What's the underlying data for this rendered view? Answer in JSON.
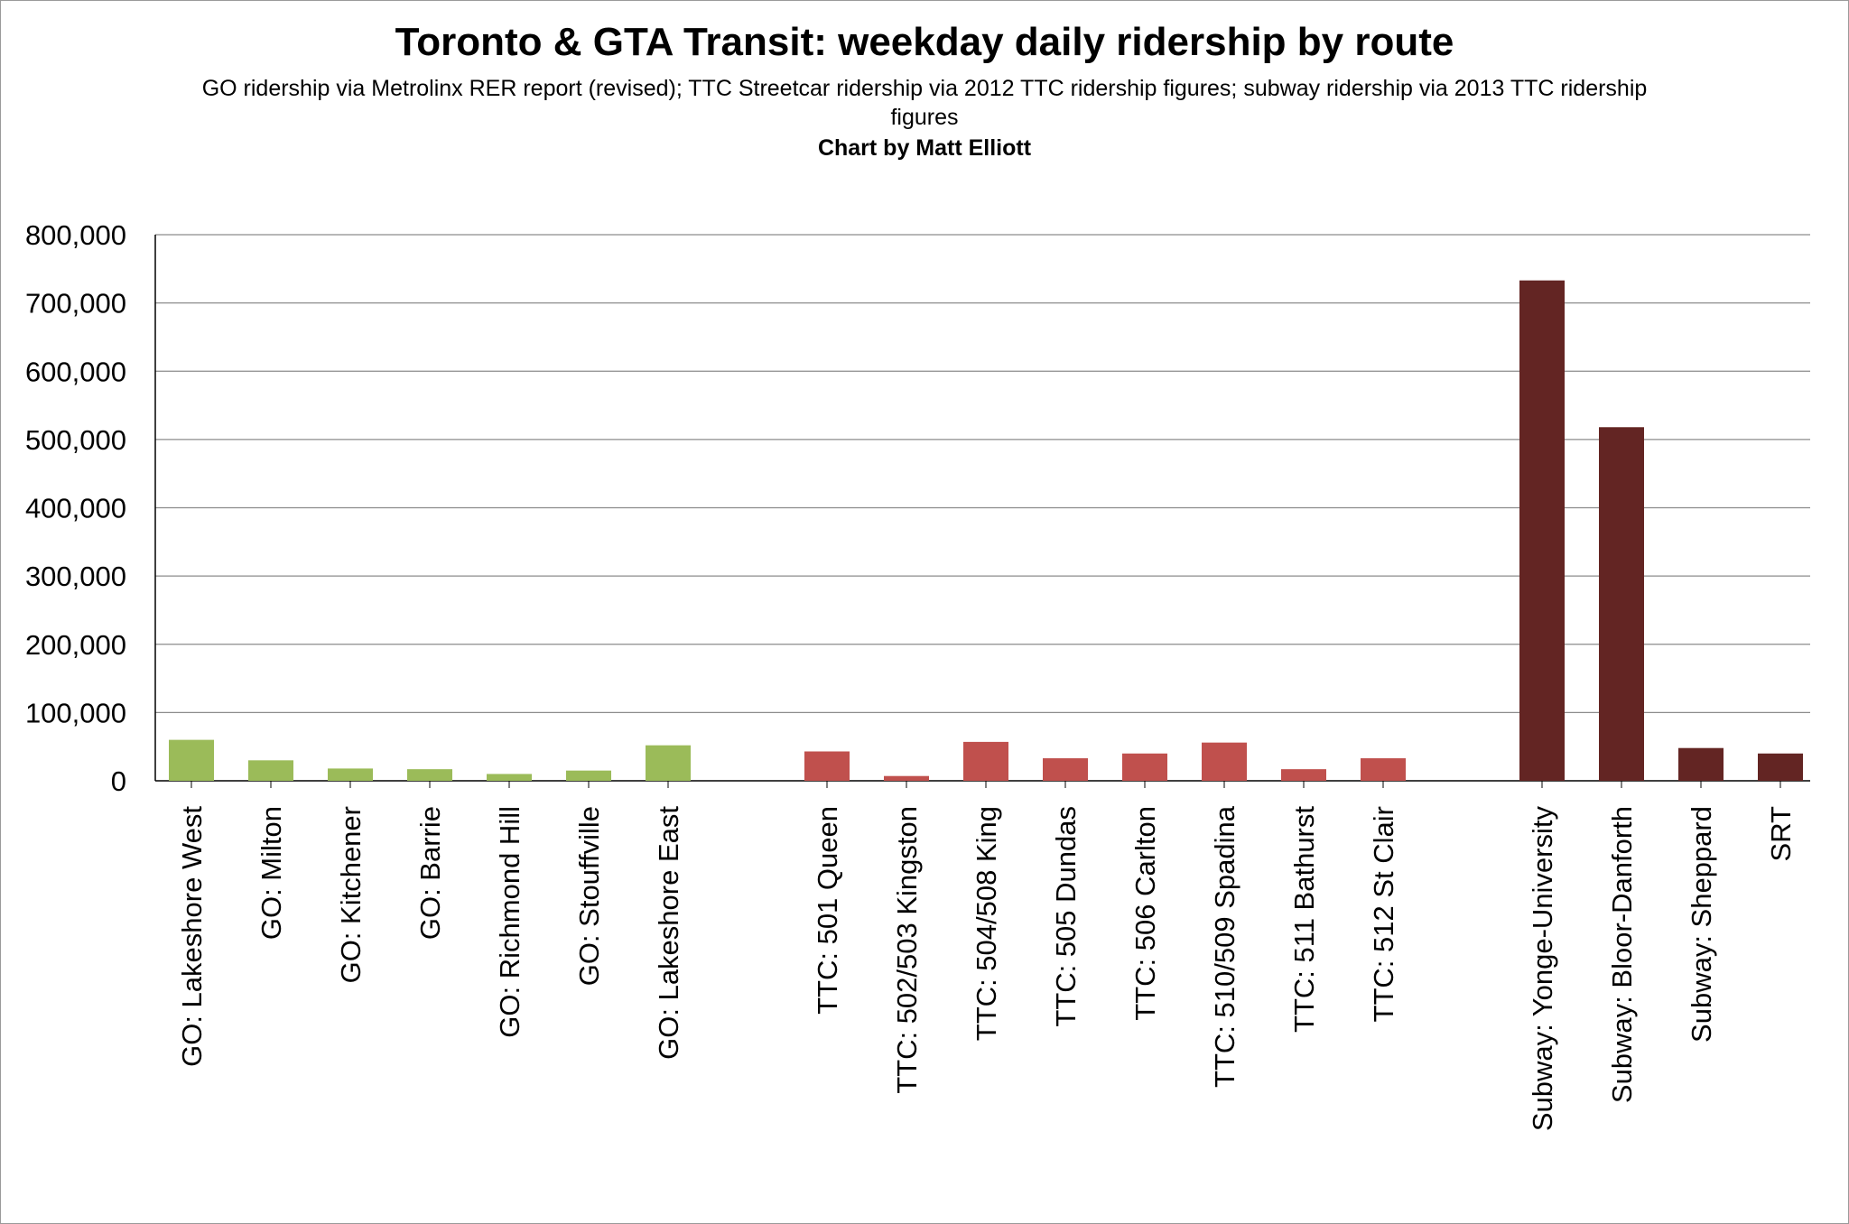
{
  "chart_data": {
    "type": "bar",
    "title": "Toronto & GTA Transit: weekday daily ridership by route",
    "subtitle": "GO ridership via Metrolinx RER report (revised); TTC Streetcar ridership via 2012 TTC ridership figures; subway ridership via 2013 TTC ridership figures",
    "credit": "Chart by Matt Elliott",
    "xlabel": "",
    "ylabel": "",
    "ylim": [
      0,
      800000
    ],
    "yticks": [
      "0",
      "100,000",
      "200,000",
      "300,000",
      "400,000",
      "500,000",
      "600,000",
      "700,000",
      "800,000"
    ],
    "grid": true,
    "categories": [
      "GO: Lakeshore West",
      "GO: Milton",
      "GO: Kitchener",
      "GO: Barrie",
      "GO: Richmond Hill",
      "GO: Stouffville",
      "GO: Lakeshore East",
      "TTC: 501 Queen",
      "TTC: 502/503 Kingston",
      "TTC: 504/508 King",
      "TTC: 505 Dundas",
      "TTC: 506 Carlton",
      "TTC: 510/509 Spadina",
      "TTC: 511 Bathurst",
      "TTC: 512 St Clair",
      "Subway: Yonge-University",
      "Subway: Bloor-Danforth",
      "Subway: Sheppard",
      "SRT"
    ],
    "values": [
      60000,
      30000,
      18000,
      17000,
      10000,
      15000,
      52000,
      43000,
      7000,
      57000,
      33000,
      40000,
      56000,
      17000,
      33000,
      733000,
      518000,
      48000,
      40000
    ],
    "groups": [
      "GO",
      "GO",
      "GO",
      "GO",
      "GO",
      "GO",
      "GO",
      "TTC",
      "TTC",
      "TTC",
      "TTC",
      "TTC",
      "TTC",
      "TTC",
      "TTC",
      "Subway",
      "Subway",
      "Subway",
      "Subway"
    ],
    "colors": {
      "GO": "#9bbb59",
      "TTC": "#c0504d",
      "Subway": "#632523"
    }
  }
}
